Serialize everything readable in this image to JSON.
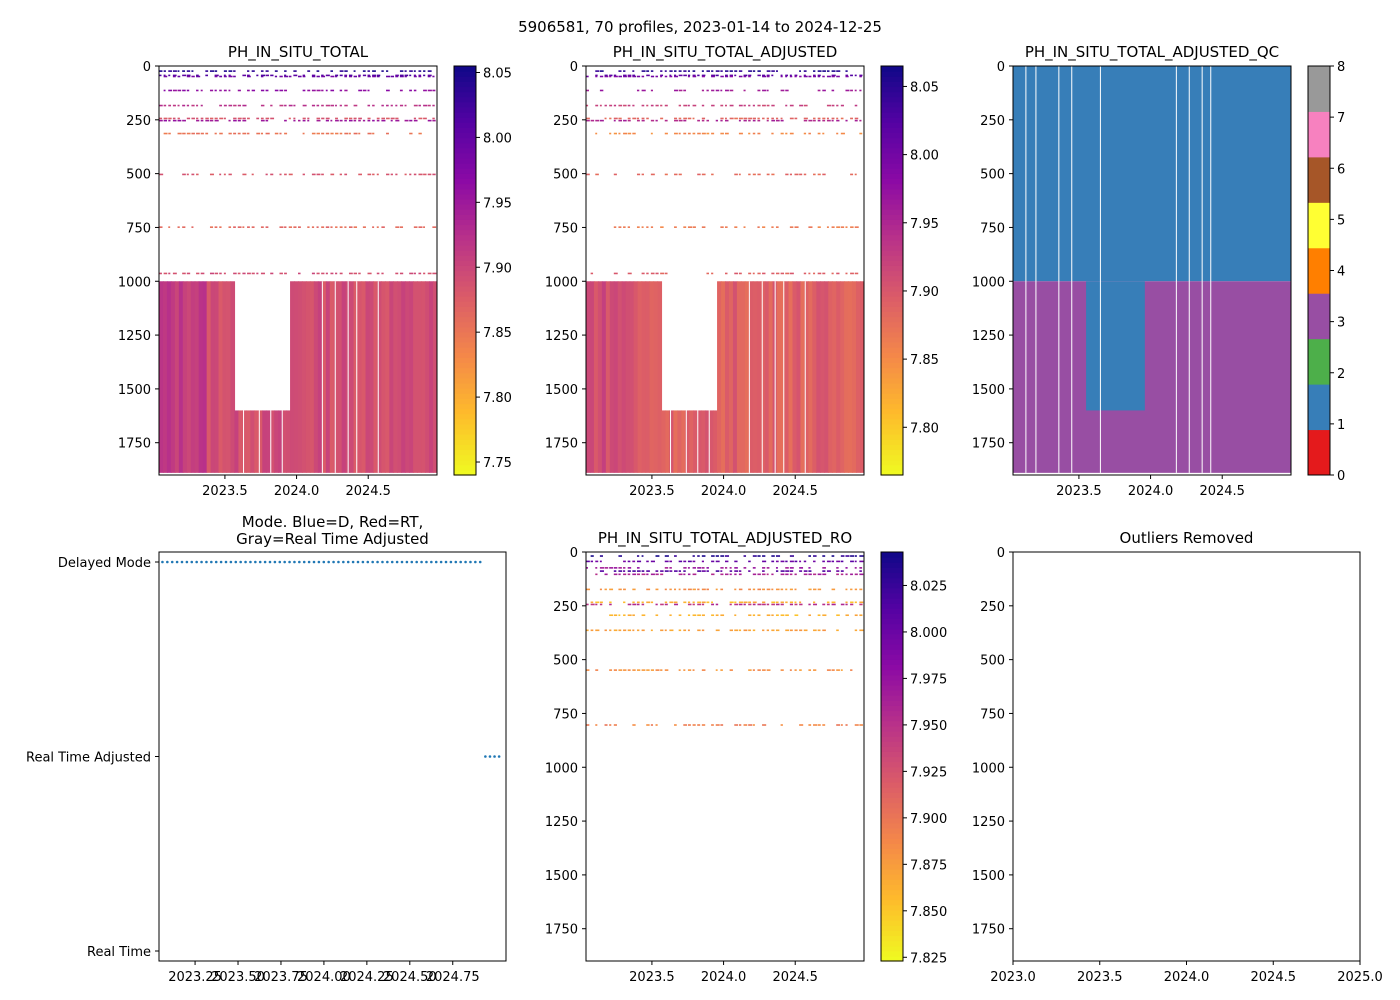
{
  "figure": {
    "suptitle": "5906581, 70 profiles, 2023-01-14 to 2024-12-25"
  },
  "chart_data": [
    {
      "id": "p1",
      "type": "heatmap",
      "title": "PH_IN_SITU_TOTAL",
      "xlabel": "",
      "ylabel": "",
      "xlim": [
        2023.04,
        2024.98
      ],
      "ylim": [
        1900,
        0
      ],
      "xticks": [
        2023.5,
        2024.0,
        2024.5
      ],
      "xtick_labels": [
        "2023.5",
        "2024.0",
        "2024.5"
      ],
      "yticks": [
        0,
        250,
        500,
        750,
        1000,
        1250,
        1500,
        1750
      ],
      "ytick_labels": [
        "0",
        "250",
        "500",
        "750",
        "1000",
        "1250",
        "1500",
        "1750"
      ],
      "colormap": "plasma_r",
      "colorbar": {
        "min": 7.74,
        "max": 8.055,
        "ticks": [
          7.75,
          7.8,
          7.85,
          7.9,
          7.95,
          8.0,
          8.05
        ],
        "tick_labels": [
          "7.75",
          "7.80",
          "7.85",
          "7.90",
          "7.95",
          "8.00",
          "8.05"
        ]
      },
      "deep_layer": {
        "top": 1000,
        "bottom": 1890,
        "value": 7.89
      },
      "deep_gap": {
        "x0": 2023.55,
        "x1": 2023.96,
        "bottom": 1600
      },
      "bands": [
        {
          "depth": 20,
          "value": 8.04
        },
        {
          "depth": 40,
          "value": 8.01
        },
        {
          "depth": 45,
          "value": 7.99
        },
        {
          "depth": 110,
          "value": 7.96
        },
        {
          "depth": 180,
          "value": 7.92
        },
        {
          "depth": 240,
          "value": 7.88
        },
        {
          "depth": 250,
          "value": 7.95
        },
        {
          "depth": 310,
          "value": 7.85
        },
        {
          "depth": 500,
          "value": 7.88
        },
        {
          "depth": 745,
          "value": 7.86
        },
        {
          "depth": 960,
          "value": 7.89
        }
      ]
    },
    {
      "id": "p2",
      "type": "heatmap",
      "title": "PH_IN_SITU_TOTAL_ADJUSTED",
      "xlabel": "",
      "ylabel": "",
      "xlim": [
        2023.04,
        2024.98
      ],
      "ylim": [
        1900,
        0
      ],
      "xticks": [
        2023.5,
        2024.0,
        2024.5
      ],
      "xtick_labels": [
        "2023.5",
        "2024.0",
        "2024.5"
      ],
      "yticks": [
        0,
        250,
        500,
        750,
        1000,
        1250,
        1500,
        1750
      ],
      "ytick_labels": [
        "0",
        "250",
        "500",
        "750",
        "1000",
        "1250",
        "1500",
        "1750"
      ],
      "colormap": "plasma_r",
      "colorbar": {
        "min": 7.765,
        "max": 8.065,
        "ticks": [
          7.8,
          7.85,
          7.9,
          7.95,
          8.0,
          8.05
        ],
        "tick_labels": [
          "7.80",
          "7.85",
          "7.90",
          "7.95",
          "8.00",
          "8.05"
        ]
      },
      "deep_layer": {
        "top": 1000,
        "bottom": 1890,
        "value": 7.89
      },
      "deep_gap": {
        "x0": 2023.55,
        "x1": 2023.96,
        "bottom": 1600
      },
      "bands": [
        {
          "depth": 20,
          "value": 8.05
        },
        {
          "depth": 40,
          "value": 8.02
        },
        {
          "depth": 45,
          "value": 7.99
        },
        {
          "depth": 110,
          "value": 7.96
        },
        {
          "depth": 180,
          "value": 7.92
        },
        {
          "depth": 240,
          "value": 7.88
        },
        {
          "depth": 250,
          "value": 7.95
        },
        {
          "depth": 310,
          "value": 7.85
        },
        {
          "depth": 500,
          "value": 7.88
        },
        {
          "depth": 745,
          "value": 7.86
        },
        {
          "depth": 960,
          "value": 7.89
        }
      ]
    },
    {
      "id": "p3",
      "type": "heatmap",
      "title": "PH_IN_SITU_TOTAL_ADJUSTED_QC",
      "xlabel": "",
      "ylabel": "",
      "xlim": [
        2023.04,
        2024.98
      ],
      "ylim": [
        1900,
        0
      ],
      "xticks": [
        2023.5,
        2024.0,
        2024.5
      ],
      "xtick_labels": [
        "2023.5",
        "2024.0",
        "2024.5"
      ],
      "yticks": [
        0,
        250,
        500,
        750,
        1000,
        1250,
        1500,
        1750
      ],
      "ytick_labels": [
        "0",
        "250",
        "500",
        "750",
        "1000",
        "1250",
        "1500",
        "1750"
      ],
      "qc_colors": [
        "#e41a1c",
        "#377eb8",
        "#4daf4a",
        "#984ea3",
        "#ff7f00",
        "#ffff33",
        "#a65628",
        "#f781bf",
        "#999999"
      ],
      "colorbar": {
        "min": 0,
        "max": 8,
        "ticks": [
          0,
          1,
          2,
          3,
          4,
          5,
          6,
          7,
          8
        ],
        "tick_labels": [
          "0",
          "1",
          "2",
          "3",
          "4",
          "5",
          "6",
          "7",
          "8"
        ]
      },
      "regions": [
        {
          "x0": 2023.04,
          "x1": 2024.98,
          "top": 0,
          "bottom": 1000,
          "qc": 1
        },
        {
          "x0": 2023.04,
          "x1": 2024.98,
          "top": 1000,
          "bottom": 1890,
          "qc": 3
        },
        {
          "x0": 2023.55,
          "x1": 2023.96,
          "top": 1000,
          "bottom": 1600,
          "qc": 1
        }
      ]
    },
    {
      "id": "p4",
      "type": "scatter",
      "title": "Mode. Blue=D, Red=RT,\nGray=Real Time Adjusted",
      "title_lines": [
        "Mode. Blue=D, Red=RT,",
        "Gray=Real Time Adjusted"
      ],
      "xlabel": "",
      "ylabel": "",
      "xlim": [
        2023.04,
        2025.06
      ],
      "ylim": [
        0,
        2
      ],
      "xticks": [
        2023.25,
        2023.5,
        2023.75,
        2024.0,
        2024.25,
        2024.5,
        2024.75
      ],
      "xtick_labels": [
        "2023.25",
        "2023.50",
        "2023.75",
        "2024.00",
        "2024.25",
        "2024.50",
        "2024.75"
      ],
      "yticks": [
        0,
        1,
        2
      ],
      "ytick_labels": [
        "Real Time",
        "Real Time Adjusted",
        "Delayed Mode"
      ],
      "series": [
        {
          "name": "Delayed Mode",
          "y": 2,
          "x_start": 2023.06,
          "x_end": 2024.91,
          "count": 66,
          "color": "#1f77b4"
        },
        {
          "name": "Real Time Adjusted",
          "y": 1,
          "x_start": 2024.94,
          "x_end": 2025.02,
          "count": 4,
          "color": "#1f77b4"
        }
      ]
    },
    {
      "id": "p5",
      "type": "heatmap",
      "title": "PH_IN_SITU_TOTAL_ADJUSTED_RO",
      "xlabel": "",
      "ylabel": "",
      "xlim": [
        2023.04,
        2024.98
      ],
      "ylim": [
        1900,
        0
      ],
      "xticks": [
        2023.5,
        2024.0,
        2024.5
      ],
      "xtick_labels": [
        "2023.5",
        "2024.0",
        "2024.5"
      ],
      "yticks": [
        0,
        250,
        500,
        750,
        1000,
        1250,
        1500,
        1750
      ],
      "ytick_labels": [
        "0",
        "250",
        "500",
        "750",
        "1000",
        "1250",
        "1500",
        "1750"
      ],
      "colormap": "plasma_r",
      "colorbar": {
        "min": 7.823,
        "max": 8.043,
        "ticks": [
          7.825,
          7.85,
          7.875,
          7.9,
          7.925,
          7.95,
          7.975,
          8.0,
          8.025
        ],
        "tick_labels": [
          "7.825",
          "7.850",
          "7.875",
          "7.900",
          "7.925",
          "7.950",
          "7.975",
          "8.000",
          "8.025"
        ]
      },
      "bands": [
        {
          "depth": 15,
          "value": 8.03
        },
        {
          "depth": 40,
          "value": 8.0
        },
        {
          "depth": 70,
          "value": 7.97
        },
        {
          "depth": 85,
          "value": 8.01
        },
        {
          "depth": 100,
          "value": 7.96
        },
        {
          "depth": 170,
          "value": 7.88
        },
        {
          "depth": 230,
          "value": 7.86
        },
        {
          "depth": 240,
          "value": 7.95
        },
        {
          "depth": 290,
          "value": 7.86
        },
        {
          "depth": 360,
          "value": 7.87
        },
        {
          "depth": 545,
          "value": 7.88
        },
        {
          "depth": 800,
          "value": 7.89
        }
      ]
    },
    {
      "id": "p6",
      "type": "scatter",
      "title": "Outliers Removed",
      "xlabel": "",
      "ylabel": "",
      "xlim": [
        2023.0,
        2025.0
      ],
      "ylim": [
        1900,
        0
      ],
      "xticks": [
        2023.0,
        2023.5,
        2024.0,
        2024.5,
        2025.0
      ],
      "xtick_labels": [
        "2023.0",
        "2023.5",
        "2024.0",
        "2024.5",
        "2025.0"
      ],
      "yticks": [
        0,
        250,
        500,
        750,
        1000,
        1250,
        1500,
        1750
      ],
      "ytick_labels": [
        "0",
        "250",
        "500",
        "750",
        "1000",
        "1250",
        "1500",
        "1750"
      ],
      "series": []
    }
  ]
}
